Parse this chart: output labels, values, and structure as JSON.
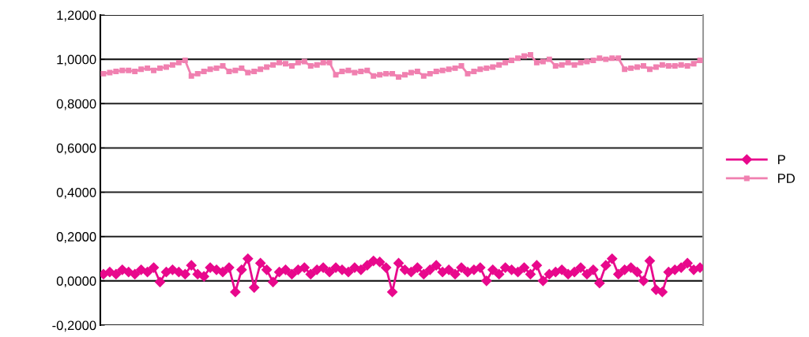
{
  "chart_data": {
    "type": "line",
    "categories": [
      null,
      null,
      null,
      null,
      null,
      null,
      null,
      null,
      null,
      null,
      null,
      null,
      null,
      null,
      null,
      null,
      null,
      null,
      null,
      null,
      null,
      null,
      null,
      null,
      null,
      null,
      null,
      null,
      null,
      null,
      null,
      null,
      null,
      null,
      null,
      null,
      null,
      null,
      null,
      null,
      null,
      null,
      null,
      null,
      null,
      null,
      null,
      null,
      null,
      null,
      null,
      null,
      null,
      null,
      null,
      null,
      null,
      null,
      null,
      null,
      null,
      null,
      null,
      null,
      null,
      null,
      null,
      null,
      null,
      null,
      null,
      null,
      null,
      null,
      null,
      null,
      null,
      null,
      null,
      null,
      null,
      null,
      null,
      null,
      null,
      null,
      null,
      null,
      null,
      null,
      null,
      null,
      null,
      null,
      null,
      null
    ],
    "series": [
      {
        "name": "P",
        "color": "#e8088c",
        "marker": "diamond",
        "values": [
          0.03,
          0.04,
          0.03,
          0.05,
          0.04,
          0.03,
          0.05,
          0.04,
          0.06,
          -0.005,
          0.04,
          0.05,
          0.04,
          0.03,
          0.07,
          0.03,
          0.02,
          0.06,
          0.05,
          0.04,
          0.06,
          -0.05,
          0.05,
          0.1,
          -0.03,
          0.08,
          0.05,
          -0.005,
          0.04,
          0.05,
          0.03,
          0.05,
          0.06,
          0.03,
          0.05,
          0.06,
          0.04,
          0.06,
          0.05,
          0.04,
          0.06,
          0.05,
          0.07,
          0.09,
          0.085,
          0.06,
          -0.05,
          0.08,
          0.05,
          0.04,
          0.06,
          0.03,
          0.05,
          0.07,
          0.04,
          0.05,
          0.03,
          0.06,
          0.04,
          0.05,
          0.06,
          0.0,
          0.05,
          0.03,
          0.06,
          0.05,
          0.04,
          0.06,
          0.03,
          0.07,
          0.0,
          0.03,
          0.04,
          0.05,
          0.03,
          0.04,
          0.06,
          0.03,
          0.05,
          -0.01,
          0.07,
          0.1,
          0.03,
          0.05,
          0.06,
          0.04,
          0.0,
          0.09,
          -0.04,
          -0.05,
          0.04,
          0.05,
          0.06,
          0.08,
          0.05,
          0.06
        ]
      },
      {
        "name": "PD",
        "color": "#f080b0",
        "marker": "square",
        "values": [
          0.935,
          0.94,
          0.945,
          0.95,
          0.95,
          0.945,
          0.955,
          0.96,
          0.95,
          0.96,
          0.965,
          0.975,
          0.985,
          0.995,
          0.925,
          0.935,
          0.945,
          0.955,
          0.96,
          0.97,
          0.945,
          0.95,
          0.96,
          0.94,
          0.945,
          0.955,
          0.965,
          0.975,
          0.985,
          0.98,
          0.97,
          0.985,
          0.99,
          0.97,
          0.975,
          0.985,
          0.985,
          0.93,
          0.945,
          0.95,
          0.94,
          0.945,
          0.95,
          0.925,
          0.93,
          0.935,
          0.935,
          0.92,
          0.93,
          0.94,
          0.945,
          0.925,
          0.935,
          0.945,
          0.95,
          0.955,
          0.96,
          0.97,
          0.935,
          0.945,
          0.955,
          0.96,
          0.965,
          0.975,
          0.985,
          0.995,
          1.005,
          1.015,
          1.02,
          0.985,
          0.99,
          1.0,
          0.97,
          0.975,
          0.985,
          0.975,
          0.985,
          0.99,
          0.995,
          1.005,
          1.0,
          1.005,
          1.005,
          0.955,
          0.96,
          0.965,
          0.97,
          0.955,
          0.965,
          0.975,
          0.97,
          0.97,
          0.975,
          0.97,
          0.98,
          0.995
        ]
      }
    ],
    "ylim": [
      -0.2,
      1.2
    ],
    "yticks": [
      {
        "value": -0.2,
        "label": "-0,2000"
      },
      {
        "value": 0,
        "label": "0,0000"
      },
      {
        "value": 0.2,
        "label": "0,2000"
      },
      {
        "value": 0.4,
        "label": "0,4000"
      },
      {
        "value": 0.6,
        "label": "0,6000"
      },
      {
        "value": 0.8,
        "label": "0,8000"
      },
      {
        "value": 1.0,
        "label": "1,0000"
      },
      {
        "value": 1.2,
        "label": "1,2000"
      }
    ],
    "grid": "y",
    "legend": "right",
    "tick_labels": "y",
    "line_style": "solid"
  }
}
